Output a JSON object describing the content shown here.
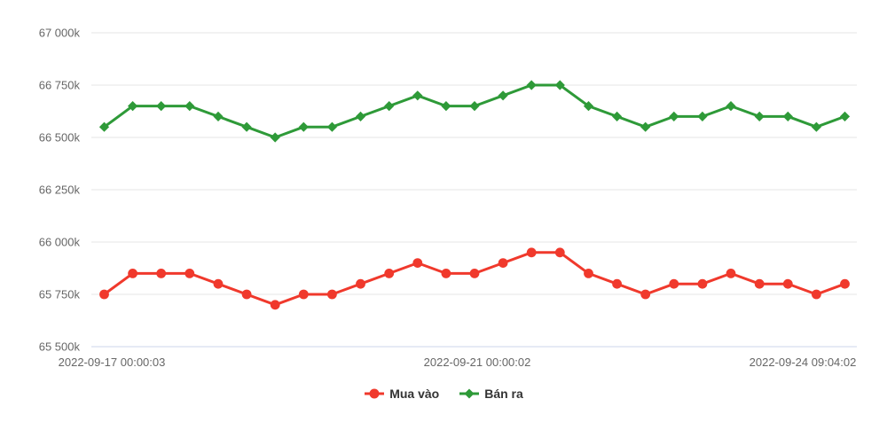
{
  "chart_data": {
    "type": "line",
    "title": "",
    "xlabel": "",
    "ylabel": "",
    "ylim": [
      65500,
      67000
    ],
    "grid": true,
    "legend_position": "bottom-center",
    "x_tick_labels": [
      "2022-09-17 00:00:03",
      "2022-09-21 00:00:02",
      "2022-09-24 09:04:02"
    ],
    "y_tick_values": [
      67000,
      66750,
      66500,
      66250,
      66000,
      65750,
      65500
    ],
    "y_tick_label_suffix": "k",
    "series": [
      {
        "name": "Mua vào",
        "marker": "circle",
        "color": "#f0392c",
        "values": [
          65750,
          65850,
          65850,
          65850,
          65800,
          65750,
          65700,
          65750,
          65750,
          65800,
          65850,
          65900,
          65850,
          65850,
          65900,
          65950,
          65950,
          65850,
          65800,
          65750,
          65800,
          65800,
          65850,
          65800,
          65800,
          65750,
          65800
        ]
      },
      {
        "name": "Bán ra",
        "marker": "diamond",
        "color": "#2e9a38",
        "values": [
          66550,
          66650,
          66650,
          66650,
          66600,
          66550,
          66500,
          66550,
          66550,
          66600,
          66650,
          66700,
          66650,
          66650,
          66700,
          66750,
          66750,
          66650,
          66600,
          66550,
          66600,
          66600,
          66650,
          66600,
          66600,
          66550,
          66600
        ]
      }
    ],
    "colors": {
      "gridline": "#e6e6e6",
      "axis_line": "#ccd6eb",
      "tick_text": "#666666",
      "legend_text": "#333333",
      "background": "#ffffff"
    }
  }
}
